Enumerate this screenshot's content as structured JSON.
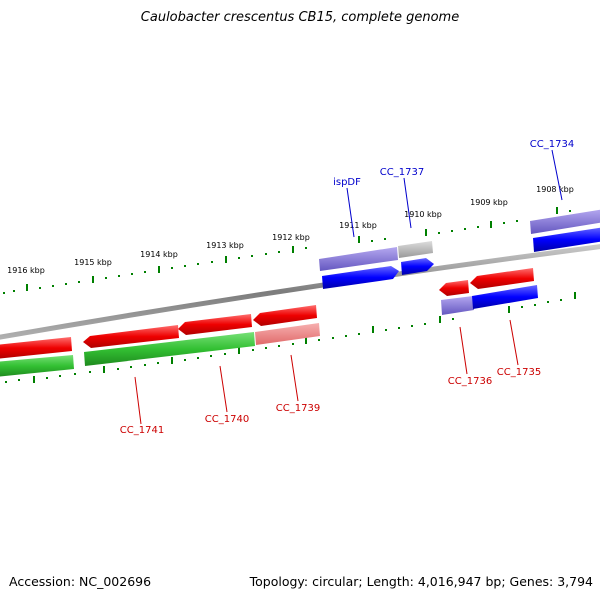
{
  "title": "Caulobacter crescentus CB15, complete genome",
  "accession": "Accession: NC_002696",
  "summary": "Topology: circular; Length: 4,016,947 bp; Genes: 3,794",
  "colors": {
    "backbone": "#888888",
    "forward_gene": "#ff0000",
    "forward_gene_light": "#f08080",
    "forward_cds": "#33cc33",
    "reverse_gene": "#0000ff",
    "reverse_gene_light": "#7a6fd0",
    "reverse_other": "#aaaaaa",
    "tick": "#008000",
    "label_forward": "#cc0000",
    "label_reverse": "#0000cc"
  },
  "ticks": [
    "1916 kbp",
    "1915 kbp",
    "1914 kbp",
    "1913 kbp",
    "1912 kbp",
    "1911 kbp",
    "1910 kbp",
    "1909 kbp",
    "1908 kbp"
  ],
  "genes": {
    "reverse": [
      "ispDF",
      "CC_1737",
      "CC_1734"
    ],
    "forward": [
      "CC_1741",
      "CC_1740",
      "CC_1739",
      "CC_1736",
      "CC_1735"
    ]
  }
}
